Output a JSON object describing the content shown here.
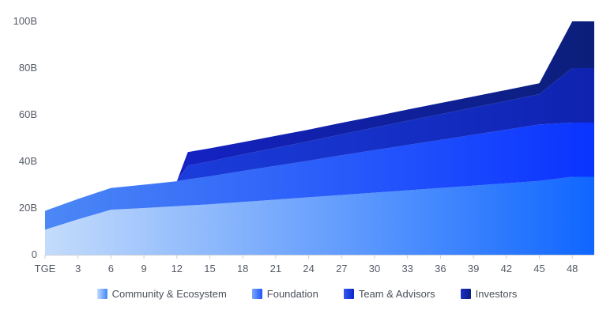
{
  "chart_data": {
    "type": "area",
    "stacked": true,
    "x": [
      0,
      3,
      6,
      9,
      12,
      13,
      15,
      18,
      21,
      24,
      27,
      30,
      33,
      36,
      39,
      42,
      45,
      48,
      50
    ],
    "x_tick_labels": [
      "TGE",
      "3",
      "6",
      "9",
      "12",
      "15",
      "18",
      "21",
      "24",
      "27",
      "30",
      "33",
      "36",
      "39",
      "42",
      "45",
      "48"
    ],
    "x_tick_values": [
      0,
      3,
      6,
      9,
      12,
      15,
      18,
      21,
      24,
      27,
      30,
      33,
      36,
      39,
      42,
      45,
      48
    ],
    "y_tick_labels": [
      "0",
      "20B",
      "40B",
      "60B",
      "80B",
      "100B"
    ],
    "y_tick_values": [
      0,
      20,
      40,
      60,
      80,
      100
    ],
    "xlim": [
      0,
      50
    ],
    "ylim": [
      0,
      100
    ],
    "series": [
      {
        "name": "Community & Ecosystem",
        "color_start": "#c4dcfb",
        "color_end": "#0f66ff",
        "values": [
          10.7,
          15.2,
          19.3,
          20.0,
          20.8,
          21.1,
          21.6,
          22.6,
          23.6,
          24.6,
          25.6,
          26.6,
          27.6,
          28.6,
          29.6,
          30.6,
          31.6,
          33.4,
          33.4
        ]
      },
      {
        "name": "Foundation",
        "color_start": "#4c88f5",
        "color_end": "#0a33ff",
        "values": [
          8.1,
          8.7,
          9.3,
          10.0,
          10.7,
          11.2,
          12.0,
          13.3,
          14.5,
          15.7,
          17.0,
          18.2,
          19.4,
          20.6,
          21.8,
          23.0,
          24.2,
          23.2,
          23.2
        ]
      },
      {
        "name": "Team & Advisors",
        "color_start": "#1b3ddc",
        "color_end": "#0f22b0",
        "values": [
          0,
          0,
          0,
          0,
          0,
          5.9,
          6.4,
          7.1,
          7.7,
          8.3,
          9.0,
          9.7,
          10.4,
          11.0,
          11.7,
          12.3,
          13.0,
          23.4,
          23.4
        ]
      },
      {
        "name": "Investors",
        "color_start": "#1422c4",
        "color_end": "#0b1f79",
        "values": [
          0,
          0,
          0,
          0,
          0,
          5.8,
          5.6,
          5.2,
          5.1,
          5.0,
          4.9,
          4.8,
          4.8,
          4.8,
          4.7,
          4.7,
          4.7,
          20.0,
          20.0
        ]
      }
    ]
  },
  "legend": [
    {
      "label": "Community & Ecosystem",
      "color_a": "#c4dcfb",
      "color_b": "#3f86ff"
    },
    {
      "label": "Foundation",
      "color_a": "#7aa6fa",
      "color_b": "#1d55ff"
    },
    {
      "label": "Team & Advisors",
      "color_a": "#3558f0",
      "color_b": "#0a26c7"
    },
    {
      "label": "Investors",
      "color_a": "#1a2ec9",
      "color_b": "#0b1d80"
    }
  ]
}
